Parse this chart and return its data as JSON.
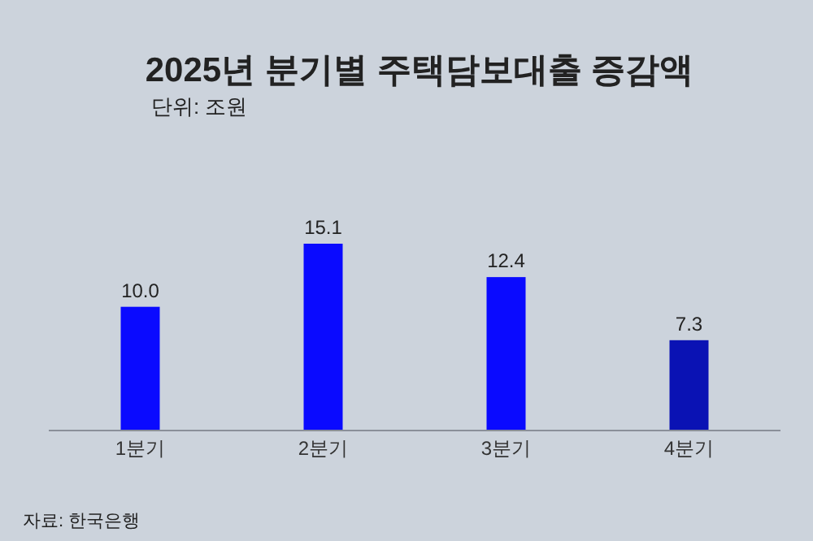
{
  "chart_data": {
    "type": "bar",
    "title": "2025년 분기별 주택담보대출 증감액",
    "subtitle": "단위: 조원",
    "categories": [
      "1분기",
      "2분기",
      "3분기",
      "4분기"
    ],
    "values": [
      10.0,
      15.1,
      12.4,
      7.3
    ],
    "value_labels": [
      "10.0",
      "15.1",
      "12.4",
      "7.3"
    ],
    "colors": [
      "#0a0aff",
      "#0a0aff",
      "#0a0aff",
      "#0a12b4"
    ],
    "annotations": [
      "자료: 한국은행"
    ]
  }
}
